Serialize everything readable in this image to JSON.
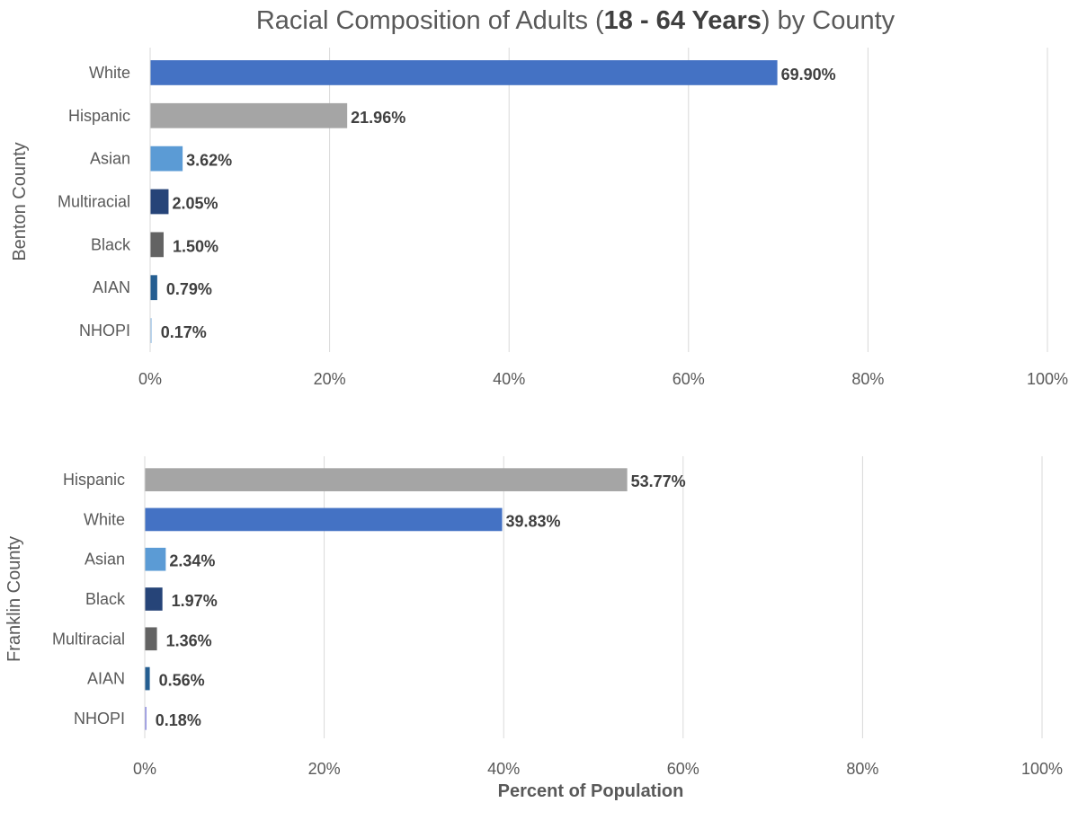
{
  "title": {
    "prefix": "Racial Composition of Adults (",
    "bold": "18 - 64 Years",
    "suffix": ") by County"
  },
  "x_axis_title": "Percent of Population",
  "chart_data": [
    {
      "type": "bar",
      "orientation": "horizontal",
      "ylabel": "Benton County",
      "categories": [
        "White",
        "Hispanic",
        "Asian",
        "Multiracial",
        "Black",
        "AIAN",
        "NHOPI"
      ],
      "values": [
        69.9,
        21.96,
        3.62,
        2.05,
        1.5,
        0.79,
        0.17
      ],
      "value_labels": [
        "69.90%",
        "21.96%",
        "3.62%",
        "2.05%",
        "1.50%",
        "0.79%",
        "0.17%"
      ],
      "colors": [
        "#4472C4",
        "#A5A5A5",
        "#5B9BD5",
        "#264478",
        "#636363",
        "#255E91",
        "#9DC3E6"
      ],
      "xlim": [
        0,
        100
      ],
      "xticks": [
        "0%",
        "20%",
        "40%",
        "60%",
        "80%",
        "100%"
      ],
      "grid": true
    },
    {
      "type": "bar",
      "orientation": "horizontal",
      "ylabel": "Franklin County",
      "categories": [
        "Hispanic",
        "White",
        "Asian",
        "Black",
        "Multiracial",
        "AIAN",
        "NHOPI"
      ],
      "values": [
        53.77,
        39.83,
        2.34,
        1.97,
        1.36,
        0.56,
        0.18
      ],
      "value_labels": [
        "53.77%",
        "39.83%",
        "2.34%",
        "1.97%",
        "1.36%",
        "0.56%",
        "0.18%"
      ],
      "colors": [
        "#A5A5A5",
        "#4472C4",
        "#5B9BD5",
        "#264478",
        "#636363",
        "#255E91",
        "#7F7FDF"
      ],
      "xlim": [
        0,
        100
      ],
      "xticks": [
        "0%",
        "20%",
        "40%",
        "60%",
        "80%",
        "100%"
      ],
      "grid": true
    }
  ]
}
